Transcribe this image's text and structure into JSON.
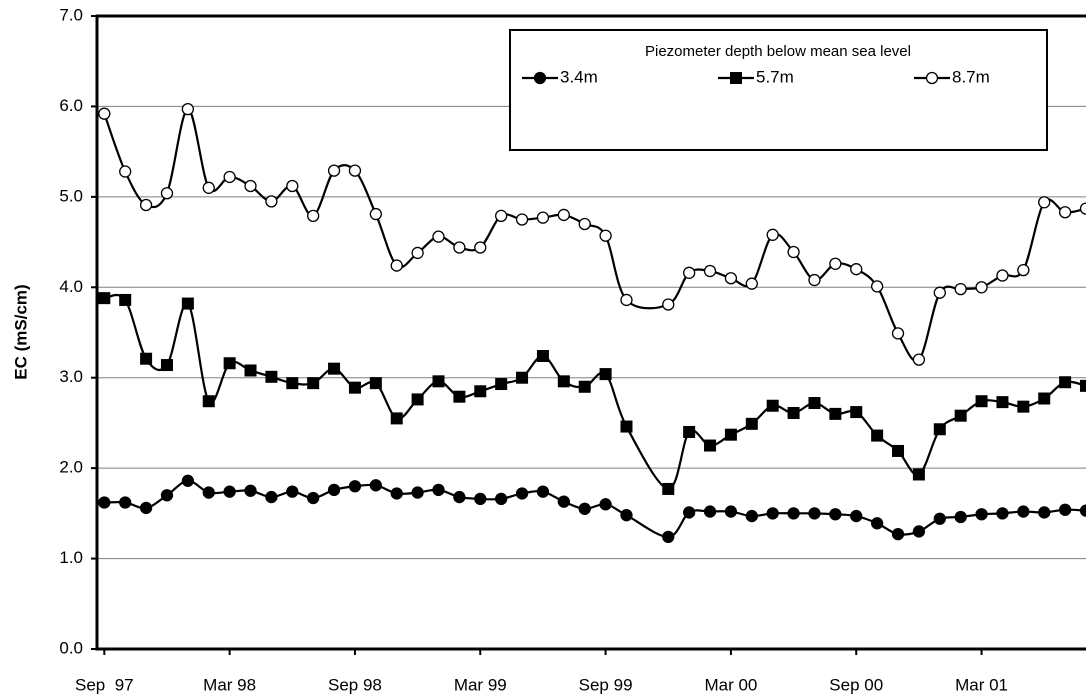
{
  "chart_data": {
    "type": "line",
    "y_label": "EC (mS/cm)",
    "legend_title": "Piezometer depth below mean sea level",
    "legend_position": "top-right",
    "grid": true,
    "ylim": [
      0,
      7
    ],
    "yticks": [
      {
        "value": 0,
        "label": "0.0"
      },
      {
        "value": 1,
        "label": "1.0"
      },
      {
        "value": 2,
        "label": "2.0"
      },
      {
        "value": 3,
        "label": "3.0"
      },
      {
        "value": 4,
        "label": "4.0"
      },
      {
        "value": 5,
        "label": "5.0"
      },
      {
        "value": 6,
        "label": "6.0"
      },
      {
        "value": 7,
        "label": "7.0"
      }
    ],
    "xlim": [
      -0.35,
      47
    ],
    "xticks": [
      {
        "value": 0,
        "label": "Sep  97"
      },
      {
        "value": 6,
        "label": "Mar 98"
      },
      {
        "value": 12,
        "label": "Sep 98"
      },
      {
        "value": 18,
        "label": "Mar 99"
      },
      {
        "value": 24,
        "label": "Sep 99"
      },
      {
        "value": 30,
        "label": "Mar 00"
      },
      {
        "value": 36,
        "label": "Sep 00"
      },
      {
        "value": 42,
        "label": "Mar 01"
      }
    ],
    "x": [
      0,
      1,
      2,
      3,
      4,
      5,
      6,
      7,
      8,
      9,
      10,
      11,
      12,
      13,
      14,
      15,
      16,
      17,
      18,
      19,
      20,
      21,
      22,
      23,
      24,
      25,
      27,
      28,
      29,
      30,
      31,
      32,
      33,
      34,
      35,
      36,
      37,
      38,
      39,
      40,
      41,
      42,
      43,
      44,
      45,
      46,
      47
    ],
    "series": [
      {
        "name": "3.4m",
        "color": "#000000",
        "marker": "circle",
        "values": [
          1.62,
          1.62,
          1.56,
          1.7,
          1.86,
          1.73,
          1.74,
          1.75,
          1.68,
          1.74,
          1.67,
          1.76,
          1.8,
          1.81,
          1.72,
          1.73,
          1.76,
          1.68,
          1.66,
          1.66,
          1.72,
          1.74,
          1.63,
          1.55,
          1.6,
          1.48,
          1.24,
          1.51,
          1.52,
          1.52,
          1.47,
          1.5,
          1.5,
          1.5,
          1.49,
          1.47,
          1.39,
          1.27,
          1.3,
          1.44,
          1.46,
          1.49,
          1.5,
          1.52,
          1.51,
          1.54,
          1.53
        ]
      },
      {
        "name": "5.7m",
        "color": "#000000",
        "marker": "square",
        "values": [
          3.88,
          3.86,
          3.21,
          3.14,
          3.82,
          2.74,
          3.16,
          3.08,
          3.01,
          2.94,
          2.94,
          3.1,
          2.89,
          2.94,
          2.55,
          2.76,
          2.96,
          2.79,
          2.85,
          2.93,
          3.0,
          3.24,
          2.96,
          2.9,
          3.04,
          2.46,
          1.77,
          2.4,
          2.25,
          2.37,
          2.49,
          2.69,
          2.61,
          2.72,
          2.6,
          2.62,
          2.36,
          2.19,
          1.93,
          2.43,
          2.58,
          2.74,
          2.73,
          2.68,
          2.77,
          2.95,
          2.91
        ]
      },
      {
        "name": "8.7m",
        "color": "#000000",
        "marker": "open-circle",
        "values": [
          5.92,
          5.28,
          4.91,
          5.04,
          5.97,
          5.1,
          5.22,
          5.12,
          4.95,
          5.12,
          4.79,
          5.29,
          5.29,
          4.81,
          4.24,
          4.38,
          4.56,
          4.44,
          4.44,
          4.79,
          4.75,
          4.77,
          4.8,
          4.7,
          4.57,
          3.86,
          3.81,
          4.16,
          4.18,
          4.1,
          4.04,
          4.58,
          4.39,
          4.08,
          4.26,
          4.2,
          4.01,
          3.49,
          3.2,
          3.94,
          3.98,
          4.0,
          4.13,
          4.19,
          4.94,
          4.83,
          4.87
        ]
      }
    ]
  }
}
